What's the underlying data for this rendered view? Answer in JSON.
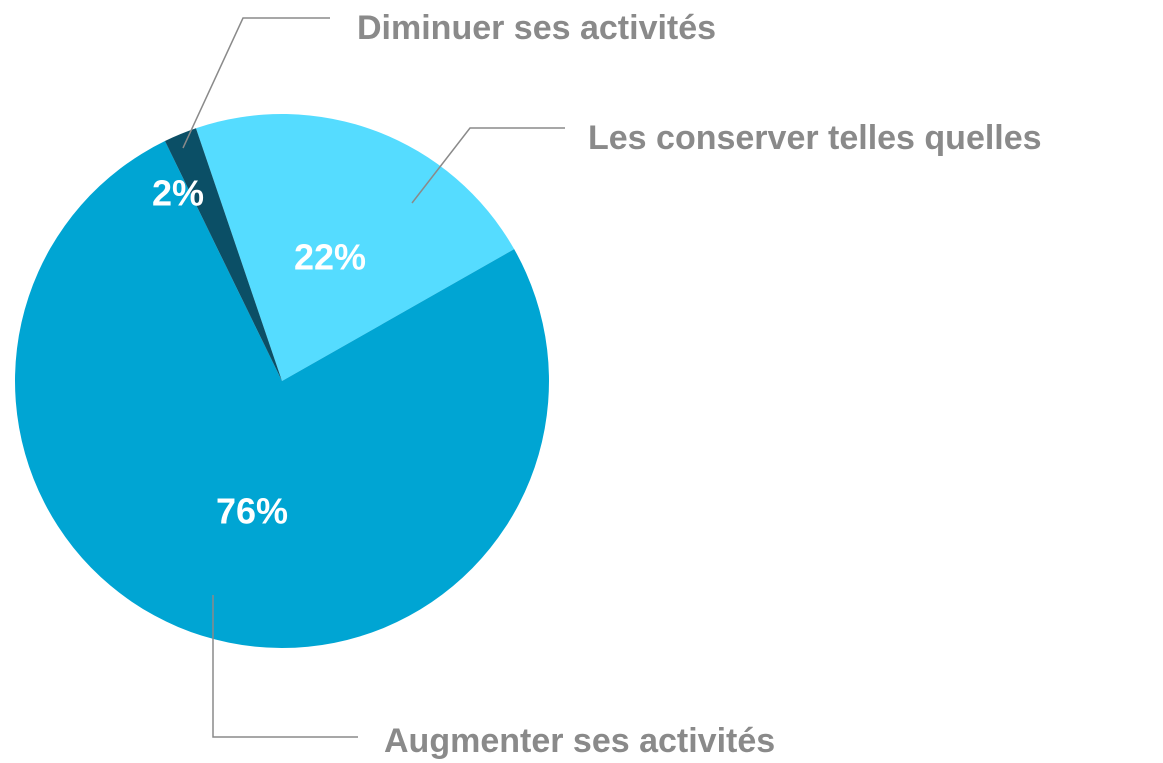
{
  "chart_data": {
    "type": "pie",
    "categories": [
      "Les conserver telles quelles",
      "Augmenter ses activités",
      "Diminuer ses activités"
    ],
    "values": [
      22,
      76,
      2
    ],
    "value_labels": [
      "22%",
      "76%",
      "2%"
    ],
    "colors": [
      "#55dcff",
      "#00a5d3",
      "#0b4f66"
    ]
  }
}
